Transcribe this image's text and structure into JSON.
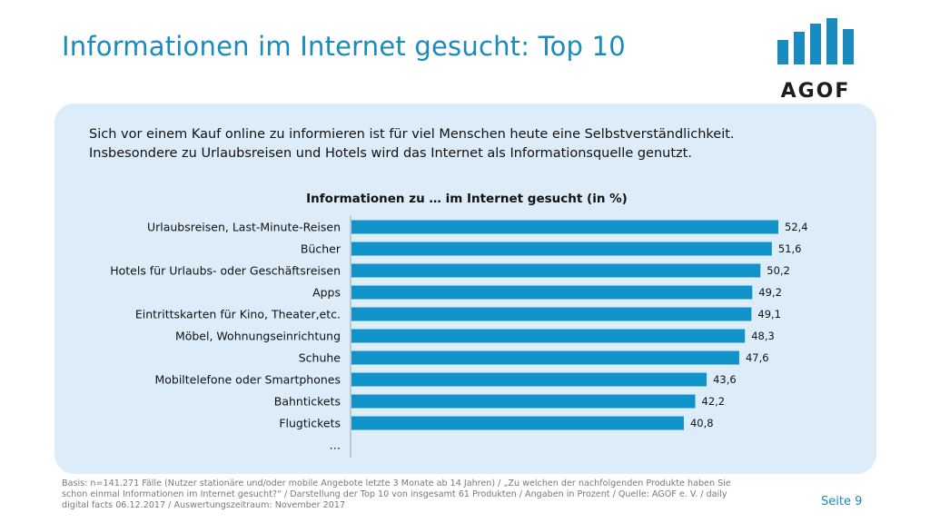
{
  "header": {
    "title": "Informationen im Internet gesucht: Top 10",
    "logo_text": "AGOF"
  },
  "intro": {
    "line1": "Sich vor einem Kauf online zu informieren ist für viel Menschen heute eine Selbstverständlichkeit.",
    "line2": "Insbesondere zu Urlaubsreisen und Hotels wird das Internet als Informationsquelle genutzt."
  },
  "chart_data": {
    "type": "bar",
    "orientation": "horizontal",
    "title": "Informationen zu … im Internet gesucht (in %)",
    "categories": [
      "Urlaubsreisen, Last-Minute-Reisen",
      "Bücher",
      "Hotels für Urlaubs- oder Geschäftsreisen",
      "Apps",
      "Eintrittskarten für Kino, Theater,etc.",
      "Möbel, Wohnungseinrichtung",
      "Schuhe",
      "Mobiltelefone oder Smartphones",
      "Bahntickets",
      "Flugtickets"
    ],
    "values": [
      52.4,
      51.6,
      50.2,
      49.2,
      49.1,
      48.3,
      47.6,
      43.6,
      42.2,
      40.8
    ],
    "value_labels": [
      "52,4",
      "51,6",
      "50,2",
      "49,2",
      "49,1",
      "48,3",
      "47,6",
      "43,6",
      "42,2",
      "40,8"
    ],
    "trailing_category": "…",
    "xlim": [
      0,
      60
    ],
    "grid": false,
    "bar_color": "#0f93c8"
  },
  "footer": {
    "note_line1": "Basis: n=141.271 Fälle (Nutzer stationäre und/oder mobile Angebote letzte 3 Monate ab 14 Jahren) / „Zu welchen der nachfolgenden Produkte haben Sie",
    "note_line2": "schon einmal Informationen im Internet gesucht?“ / Darstellung der Top 10 von insgesamt 61 Produkten / Angaben in Prozent / Quelle: AGOF e. V. / daily",
    "note_line3": "digital facts 06.12.2017 / Auswertungszeitraum: November 2017",
    "page": "Seite 9"
  },
  "colors": {
    "accent": "#1a8bbf",
    "panel": "#dcecf8",
    "bar": "#0f93c8"
  }
}
